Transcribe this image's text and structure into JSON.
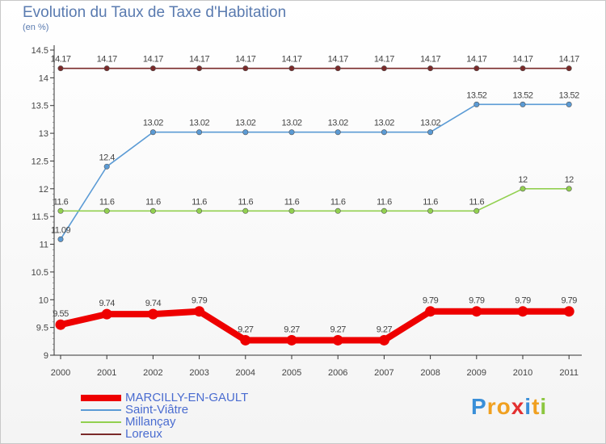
{
  "chart_data": {
    "type": "line",
    "title": "Evolution du Taux de Taxe d'Habitation",
    "subtitle": "(en %)",
    "xlabel": "",
    "ylabel": "",
    "ylim": [
      9,
      14.5
    ],
    "yticks": [
      "9",
      "9.5",
      "10",
      "10.5",
      "11",
      "11.5",
      "12",
      "12.5",
      "13",
      "13.5",
      "14",
      "14.5"
    ],
    "categories": [
      "2000",
      "2001",
      "2002",
      "2003",
      "2004",
      "2005",
      "2006",
      "2007",
      "2008",
      "2009",
      "2010",
      "2011"
    ],
    "series": [
      {
        "name": "Loreux",
        "color": "#7a2a2a",
        "values": [
          14.17,
          14.17,
          14.17,
          14.17,
          14.17,
          14.17,
          14.17,
          14.17,
          14.17,
          14.17,
          14.17,
          14.17
        ],
        "labels": [
          "14.17",
          "14.17",
          "14.17",
          "14.17",
          "14.17",
          "14.17",
          "14.17",
          "14.17",
          "14.17",
          "14.17",
          "14.17",
          "14.17"
        ]
      },
      {
        "name": "Saint-Viâtre",
        "color": "#5b9bd5",
        "values": [
          11.09,
          12.4,
          13.02,
          13.02,
          13.02,
          13.02,
          13.02,
          13.02,
          13.02,
          13.52,
          13.52,
          13.52
        ],
        "labels": [
          "11.09",
          "12.4",
          "13.02",
          "13.02",
          "13.02",
          "13.02",
          "13.02",
          "13.02",
          "13.02",
          "13.52",
          "13.52",
          "13.52"
        ]
      },
      {
        "name": "Millançay",
        "color": "#92d050",
        "values": [
          11.6,
          11.6,
          11.6,
          11.6,
          11.6,
          11.6,
          11.6,
          11.6,
          11.6,
          11.6,
          12,
          12
        ],
        "labels": [
          "11.6",
          "11.6",
          "11.6",
          "11.6",
          "11.6",
          "11.6",
          "11.6",
          "11.6",
          "11.6",
          "11.6",
          "12",
          "12"
        ]
      },
      {
        "name": "MARCILLY-EN-GAULT",
        "color": "#ee0000",
        "values": [
          9.55,
          9.74,
          9.74,
          9.79,
          9.27,
          9.27,
          9.27,
          9.27,
          9.79,
          9.79,
          9.79,
          9.79
        ],
        "labels": [
          "9.55",
          "9.74",
          "9.74",
          "9.79",
          "9.27",
          "9.27",
          "9.27",
          "9.27",
          "9.79",
          "9.79",
          "9.79",
          "9.79"
        ]
      }
    ],
    "legend": [
      {
        "name": "MARCILLY-EN-GAULT",
        "color": "#ee0000"
      },
      {
        "name": "Saint-Viâtre",
        "color": "#5b9bd5"
      },
      {
        "name": "Millançay",
        "color": "#92d050"
      },
      {
        "name": "Loreux",
        "color": "#7a2a2a"
      }
    ],
    "legend_position": "bottom-left",
    "grid": false
  },
  "logo": {
    "letters": [
      "P",
      "r",
      "o",
      "x",
      "i",
      "t",
      "i"
    ],
    "colors": [
      "#3a8fd8",
      "#f0a020",
      "#f0a020",
      "#e33030",
      "#3a8fd8",
      "#f0a020",
      "#8cc63f"
    ]
  }
}
